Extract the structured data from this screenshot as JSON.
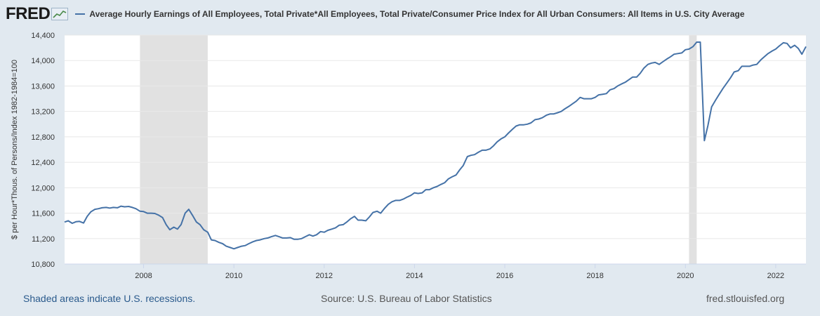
{
  "logo": {
    "text": "FRED",
    "icon": "trend-graph-icon"
  },
  "chart_data": {
    "type": "line",
    "series": [
      {
        "name": "Average Hourly Earnings of All Employees, Total Private*All Employees, Total Private/Consumer Price Index for All Urban Consumers: All Items in U.S. City Average",
        "color": "#4572a7",
        "points": [
          [
            2006.25,
            11460
          ],
          [
            2006.33,
            11480
          ],
          [
            2006.42,
            11440
          ],
          [
            2006.5,
            11465
          ],
          [
            2006.58,
            11470
          ],
          [
            2006.67,
            11445
          ],
          [
            2006.75,
            11550
          ],
          [
            2006.83,
            11620
          ],
          [
            2006.92,
            11660
          ],
          [
            2007.0,
            11670
          ],
          [
            2007.08,
            11685
          ],
          [
            2007.17,
            11690
          ],
          [
            2007.25,
            11680
          ],
          [
            2007.33,
            11690
          ],
          [
            2007.42,
            11685
          ],
          [
            2007.5,
            11710
          ],
          [
            2007.58,
            11700
          ],
          [
            2007.67,
            11705
          ],
          [
            2007.75,
            11690
          ],
          [
            2007.83,
            11670
          ],
          [
            2007.92,
            11630
          ],
          [
            2008.0,
            11625
          ],
          [
            2008.08,
            11600
          ],
          [
            2008.17,
            11600
          ],
          [
            2008.25,
            11595
          ],
          [
            2008.33,
            11570
          ],
          [
            2008.42,
            11530
          ],
          [
            2008.5,
            11420
          ],
          [
            2008.58,
            11340
          ],
          [
            2008.67,
            11380
          ],
          [
            2008.75,
            11350
          ],
          [
            2008.83,
            11420
          ],
          [
            2008.92,
            11600
          ],
          [
            2009.0,
            11660
          ],
          [
            2009.08,
            11570
          ],
          [
            2009.17,
            11460
          ],
          [
            2009.25,
            11420
          ],
          [
            2009.33,
            11340
          ],
          [
            2009.42,
            11300
          ],
          [
            2009.5,
            11180
          ],
          [
            2009.58,
            11170
          ],
          [
            2009.67,
            11140
          ],
          [
            2009.75,
            11120
          ],
          [
            2009.83,
            11080
          ],
          [
            2009.92,
            11060
          ],
          [
            2010.0,
            11040
          ],
          [
            2010.08,
            11060
          ],
          [
            2010.17,
            11080
          ],
          [
            2010.25,
            11090
          ],
          [
            2010.33,
            11120
          ],
          [
            2010.42,
            11150
          ],
          [
            2010.5,
            11170
          ],
          [
            2010.58,
            11180
          ],
          [
            2010.67,
            11200
          ],
          [
            2010.75,
            11210
          ],
          [
            2010.83,
            11230
          ],
          [
            2010.92,
            11250
          ],
          [
            2011.0,
            11230
          ],
          [
            2011.08,
            11210
          ],
          [
            2011.17,
            11210
          ],
          [
            2011.25,
            11215
          ],
          [
            2011.33,
            11190
          ],
          [
            2011.42,
            11190
          ],
          [
            2011.5,
            11200
          ],
          [
            2011.58,
            11230
          ],
          [
            2011.67,
            11260
          ],
          [
            2011.75,
            11240
          ],
          [
            2011.83,
            11260
          ],
          [
            2011.92,
            11310
          ],
          [
            2012.0,
            11300
          ],
          [
            2012.08,
            11330
          ],
          [
            2012.17,
            11350
          ],
          [
            2012.25,
            11370
          ],
          [
            2012.33,
            11410
          ],
          [
            2012.42,
            11420
          ],
          [
            2012.5,
            11460
          ],
          [
            2012.58,
            11510
          ],
          [
            2012.67,
            11550
          ],
          [
            2012.75,
            11490
          ],
          [
            2012.83,
            11490
          ],
          [
            2012.92,
            11480
          ],
          [
            2013.0,
            11540
          ],
          [
            2013.08,
            11610
          ],
          [
            2013.17,
            11630
          ],
          [
            2013.25,
            11600
          ],
          [
            2013.33,
            11670
          ],
          [
            2013.42,
            11740
          ],
          [
            2013.5,
            11780
          ],
          [
            2013.58,
            11800
          ],
          [
            2013.67,
            11800
          ],
          [
            2013.75,
            11820
          ],
          [
            2013.83,
            11850
          ],
          [
            2013.92,
            11880
          ],
          [
            2014.0,
            11920
          ],
          [
            2014.08,
            11910
          ],
          [
            2014.17,
            11920
          ],
          [
            2014.25,
            11970
          ],
          [
            2014.33,
            11970
          ],
          [
            2014.42,
            12000
          ],
          [
            2014.5,
            12020
          ],
          [
            2014.58,
            12050
          ],
          [
            2014.67,
            12080
          ],
          [
            2014.75,
            12140
          ],
          [
            2014.83,
            12170
          ],
          [
            2014.92,
            12200
          ],
          [
            2015.0,
            12280
          ],
          [
            2015.08,
            12350
          ],
          [
            2015.17,
            12490
          ],
          [
            2015.25,
            12510
          ],
          [
            2015.33,
            12520
          ],
          [
            2015.42,
            12560
          ],
          [
            2015.5,
            12590
          ],
          [
            2015.58,
            12590
          ],
          [
            2015.67,
            12610
          ],
          [
            2015.75,
            12660
          ],
          [
            2015.83,
            12720
          ],
          [
            2015.92,
            12770
          ],
          [
            2016.0,
            12800
          ],
          [
            2016.08,
            12860
          ],
          [
            2016.17,
            12920
          ],
          [
            2016.25,
            12970
          ],
          [
            2016.33,
            12990
          ],
          [
            2016.42,
            12990
          ],
          [
            2016.5,
            13000
          ],
          [
            2016.58,
            13020
          ],
          [
            2016.67,
            13070
          ],
          [
            2016.75,
            13080
          ],
          [
            2016.83,
            13100
          ],
          [
            2016.92,
            13140
          ],
          [
            2017.0,
            13160
          ],
          [
            2017.08,
            13160
          ],
          [
            2017.17,
            13180
          ],
          [
            2017.25,
            13200
          ],
          [
            2017.33,
            13240
          ],
          [
            2017.42,
            13280
          ],
          [
            2017.5,
            13320
          ],
          [
            2017.58,
            13360
          ],
          [
            2017.67,
            13420
          ],
          [
            2017.75,
            13400
          ],
          [
            2017.83,
            13400
          ],
          [
            2017.92,
            13400
          ],
          [
            2018.0,
            13420
          ],
          [
            2018.08,
            13460
          ],
          [
            2018.17,
            13470
          ],
          [
            2018.25,
            13480
          ],
          [
            2018.33,
            13540
          ],
          [
            2018.42,
            13560
          ],
          [
            2018.5,
            13600
          ],
          [
            2018.58,
            13630
          ],
          [
            2018.67,
            13660
          ],
          [
            2018.75,
            13700
          ],
          [
            2018.83,
            13740
          ],
          [
            2018.92,
            13740
          ],
          [
            2019.0,
            13800
          ],
          [
            2019.08,
            13880
          ],
          [
            2019.17,
            13940
          ],
          [
            2019.25,
            13960
          ],
          [
            2019.33,
            13970
          ],
          [
            2019.42,
            13940
          ],
          [
            2019.5,
            13980
          ],
          [
            2019.58,
            14020
          ],
          [
            2019.67,
            14060
          ],
          [
            2019.75,
            14100
          ],
          [
            2019.83,
            14110
          ],
          [
            2019.92,
            14120
          ],
          [
            2020.0,
            14170
          ],
          [
            2020.08,
            14180
          ],
          [
            2020.17,
            14220
          ],
          [
            2020.25,
            14290
          ],
          [
            2020.33,
            14290
          ],
          [
            2020.42,
            12740
          ],
          [
            2020.5,
            12980
          ],
          [
            2020.58,
            13270
          ],
          [
            2020.67,
            13380
          ],
          [
            2020.75,
            13470
          ],
          [
            2020.83,
            13560
          ],
          [
            2020.92,
            13650
          ],
          [
            2021.0,
            13730
          ],
          [
            2021.08,
            13820
          ],
          [
            2021.17,
            13840
          ],
          [
            2021.25,
            13910
          ],
          [
            2021.33,
            13910
          ],
          [
            2021.42,
            13910
          ],
          [
            2021.5,
            13930
          ],
          [
            2021.58,
            13940
          ],
          [
            2021.67,
            14010
          ],
          [
            2021.75,
            14060
          ],
          [
            2021.83,
            14110
          ],
          [
            2021.92,
            14150
          ],
          [
            2022.0,
            14180
          ],
          [
            2022.08,
            14230
          ],
          [
            2022.17,
            14280
          ],
          [
            2022.25,
            14270
          ],
          [
            2022.33,
            14200
          ],
          [
            2022.42,
            14240
          ],
          [
            2022.5,
            14190
          ],
          [
            2022.58,
            14100
          ],
          [
            2022.67,
            14220
          ]
        ]
      }
    ],
    "recessions": [
      [
        2007.92,
        2009.42
      ],
      [
        2020.08,
        2020.25
      ]
    ],
    "xlim": [
      2006.25,
      2022.67
    ],
    "ylim": [
      10800,
      14400
    ],
    "ylabel": "$ per Hour*Thous. of Persons/Index 1982-1984=100",
    "xlabel": "",
    "x_ticks": [
      2008,
      2010,
      2012,
      2014,
      2016,
      2018,
      2020,
      2022
    ],
    "x_tick_labels": [
      "2008",
      "2010",
      "2012",
      "2014",
      "2016",
      "2018",
      "2020",
      "2022"
    ],
    "y_ticks": [
      10800,
      11200,
      11600,
      12000,
      12400,
      12800,
      13200,
      13600,
      14000,
      14400
    ],
    "y_tick_labels": [
      "10,800",
      "11,200",
      "11,600",
      "12,000",
      "12,400",
      "12,800",
      "13,200",
      "13,600",
      "14,000",
      "14,400"
    ],
    "grid": true,
    "legend_position": "top"
  },
  "colors": {
    "background": "#e1e9f0",
    "plot_bg": "#ffffff",
    "recession": "#e1e1e1",
    "line": "#4572a7",
    "grid": "#e8e8e8"
  },
  "footer": {
    "left": "Shaded areas indicate U.S. recessions.",
    "center": "Source: U.S. Bureau of Labor Statistics",
    "right": "fred.stlouisfed.org"
  }
}
